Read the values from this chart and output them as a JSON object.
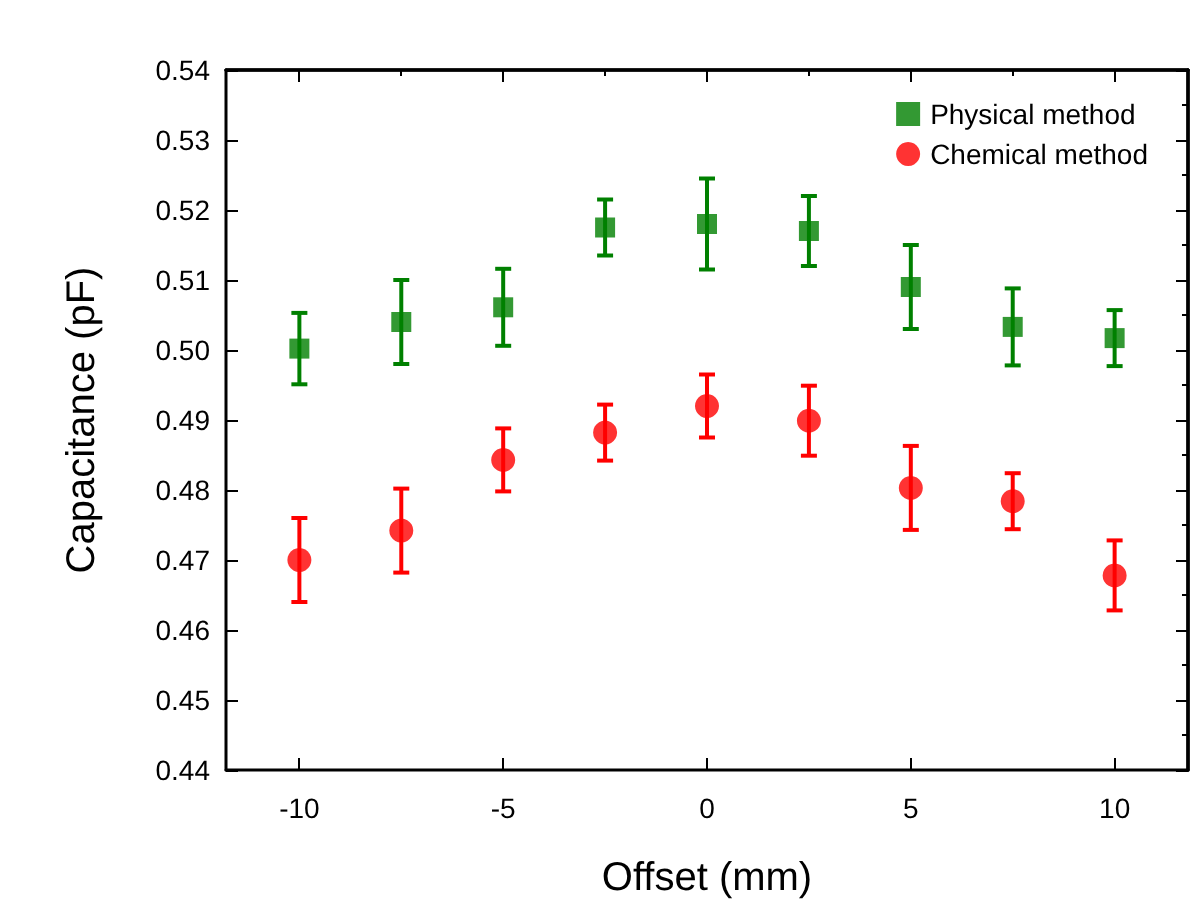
{
  "chart_data": {
    "type": "scatter",
    "xlabel": "Offset (mm)",
    "ylabel": "Capacitance (pF)",
    "x": [
      -10,
      -7.5,
      -5,
      -2.5,
      0,
      2.5,
      5,
      7.5,
      10
    ],
    "series": [
      {
        "name": "Physical method",
        "color": "#008000",
        "marker": "square",
        "values": [
          0.5002,
          0.504,
          0.5061,
          0.5175,
          0.518,
          0.517,
          0.509,
          0.5033,
          0.5017
        ],
        "errors": [
          0.0051,
          0.006,
          0.0055,
          0.004,
          0.0065,
          0.005,
          0.006,
          0.0055,
          0.004
        ]
      },
      {
        "name": "Chemical method",
        "color": "#ff0000",
        "marker": "circle",
        "values": [
          0.47,
          0.4742,
          0.4843,
          0.4882,
          0.492,
          0.4899,
          0.4803,
          0.4784,
          0.4678
        ],
        "errors": [
          0.006,
          0.006,
          0.0045,
          0.004,
          0.0045,
          0.005,
          0.006,
          0.004,
          0.005
        ]
      }
    ],
    "xlim": [
      -11.8,
      11.8
    ],
    "xticks": [
      -10,
      -5,
      0,
      5,
      10
    ],
    "ylim": [
      0.44,
      0.54
    ],
    "yticks": [
      0.44,
      0.45,
      0.46,
      0.47,
      0.48,
      0.49,
      {
        "value": 0.5,
        "label": "0.50"
      },
      0.51,
      0.52,
      0.53,
      0.54
    ],
    "grid": false,
    "legend": "top right"
  }
}
